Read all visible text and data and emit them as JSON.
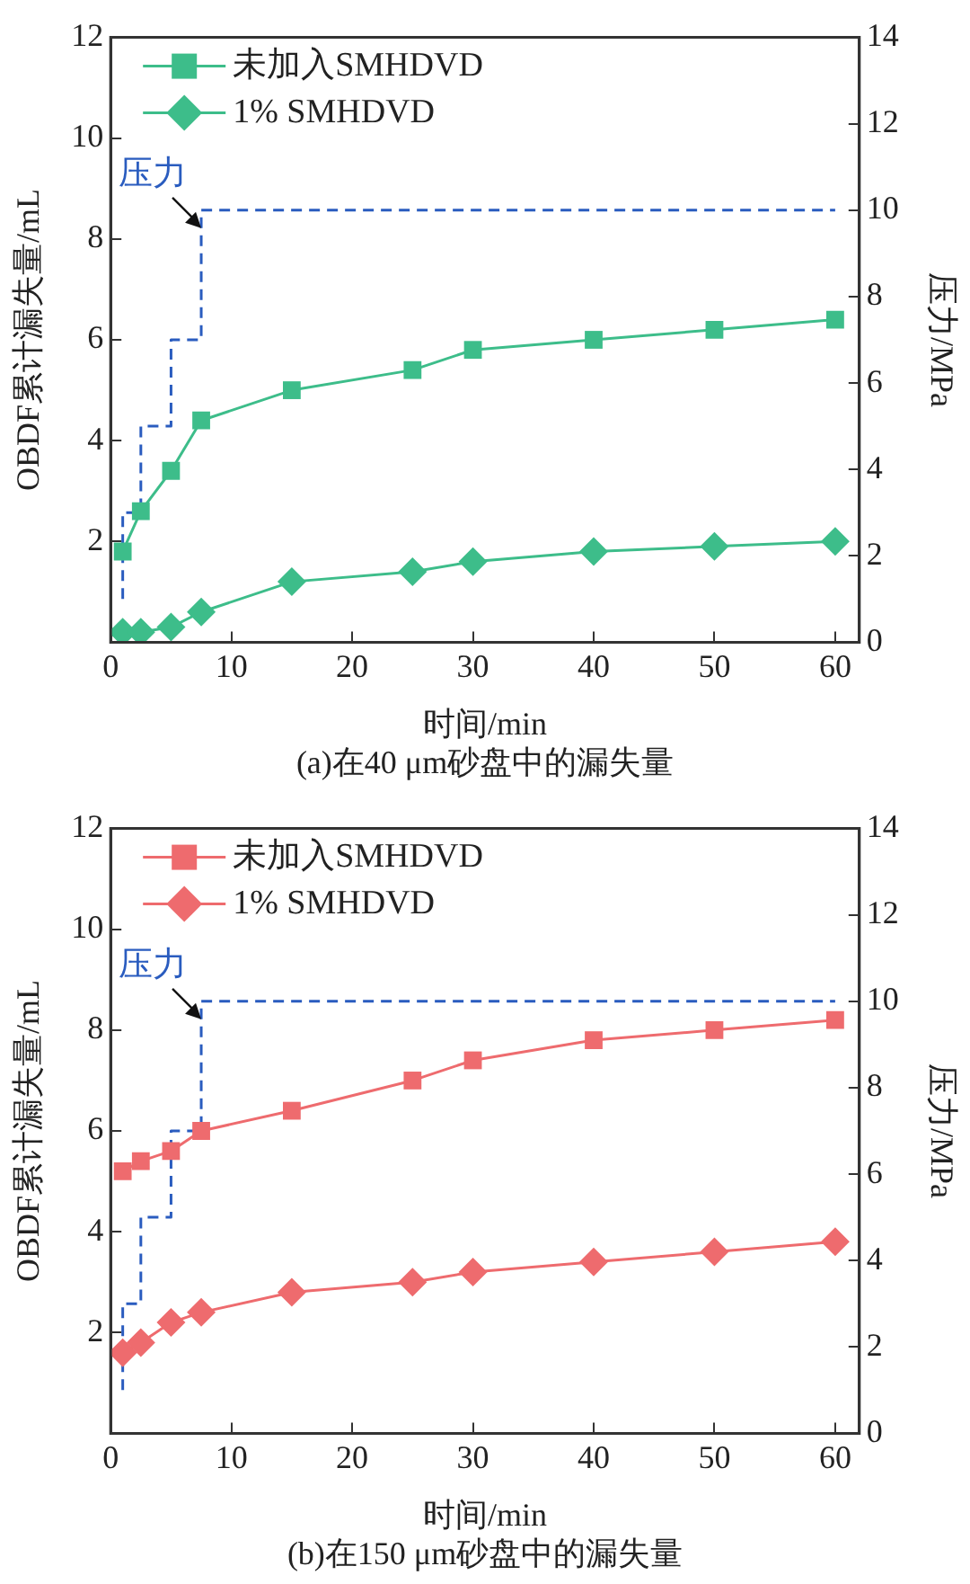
{
  "chart_data": [
    {
      "type": "line",
      "title": "(a)在40 μm砂盘中的漏失量",
      "xlabel": "时间/min",
      "ylabel": "OBDF累计漏失量/mL",
      "y2label": "压力/MPa",
      "xlim": [
        0,
        62
      ],
      "xticks": [
        0,
        10,
        20,
        30,
        40,
        50,
        60
      ],
      "ylim": [
        0,
        12
      ],
      "yticks": [
        2,
        4,
        6,
        8,
        10,
        12
      ],
      "y2lim": [
        0,
        14
      ],
      "y2ticks": [
        0,
        2,
        4,
        6,
        8,
        10,
        12,
        14
      ],
      "legend": "top left",
      "grid": false,
      "annotations": [
        "压力"
      ],
      "series": [
        {
          "name": "未加入SMHDVD",
          "color": "#3dbd8a",
          "marker": "square",
          "x": [
            1,
            2.5,
            5,
            7.5,
            15,
            25,
            30,
            40,
            50,
            60
          ],
          "values": [
            1.8,
            2.6,
            3.4,
            4.4,
            5.0,
            5.4,
            5.8,
            6.0,
            6.2,
            6.4
          ]
        },
        {
          "name": "1% SMHDVD",
          "color": "#3dbd8a",
          "marker": "diamond",
          "x": [
            1,
            2.5,
            5,
            7.5,
            15,
            25,
            30,
            40,
            50,
            60
          ],
          "values": [
            0.2,
            0.2,
            0.3,
            0.6,
            1.2,
            1.4,
            1.6,
            1.8,
            1.9,
            2.0
          ]
        },
        {
          "type": "step",
          "axis": "y2",
          "color": "#2a5cbf",
          "marker": "none",
          "line_style": "dashed",
          "x": [
            1,
            1,
            2.5,
            5,
            7.5,
            60
          ],
          "values": [
            1,
            3,
            5,
            7,
            10,
            10
          ]
        }
      ]
    },
    {
      "type": "line",
      "title": "(b)在150 μm砂盘中的漏失量",
      "xlabel": "时间/min",
      "ylabel": "OBDF累计漏失量/mL",
      "y2label": "压力/MPa",
      "xlim": [
        0,
        62
      ],
      "xticks": [
        0,
        10,
        20,
        30,
        40,
        50,
        60
      ],
      "ylim": [
        0,
        12
      ],
      "yticks": [
        2,
        4,
        6,
        8,
        10,
        12
      ],
      "y2lim": [
        0,
        14
      ],
      "y2ticks": [
        0,
        2,
        4,
        6,
        8,
        10,
        12,
        14
      ],
      "legend": "top left",
      "grid": false,
      "annotations": [
        "压力"
      ],
      "series": [
        {
          "name": "未加入SMHDVD",
          "color": "#ee6b6e",
          "marker": "square",
          "x": [
            1,
            2.5,
            5,
            7.5,
            15,
            25,
            30,
            40,
            50,
            60
          ],
          "values": [
            5.2,
            5.4,
            5.6,
            6.0,
            6.4,
            7.0,
            7.4,
            7.8,
            8.0,
            8.2
          ]
        },
        {
          "name": "1% SMHDVD",
          "color": "#ee6b6e",
          "marker": "diamond",
          "x": [
            1,
            2.5,
            5,
            7.5,
            15,
            25,
            30,
            40,
            50,
            60
          ],
          "values": [
            1.6,
            1.8,
            2.2,
            2.4,
            2.8,
            3.0,
            3.2,
            3.4,
            3.6,
            3.8
          ]
        },
        {
          "type": "step",
          "axis": "y2",
          "color": "#2a5cbf",
          "marker": "none",
          "line_style": "dashed",
          "x": [
            1,
            1,
            2.5,
            5,
            7.5,
            60
          ],
          "values": [
            1,
            3,
            5,
            7,
            10,
            10
          ]
        }
      ]
    }
  ]
}
